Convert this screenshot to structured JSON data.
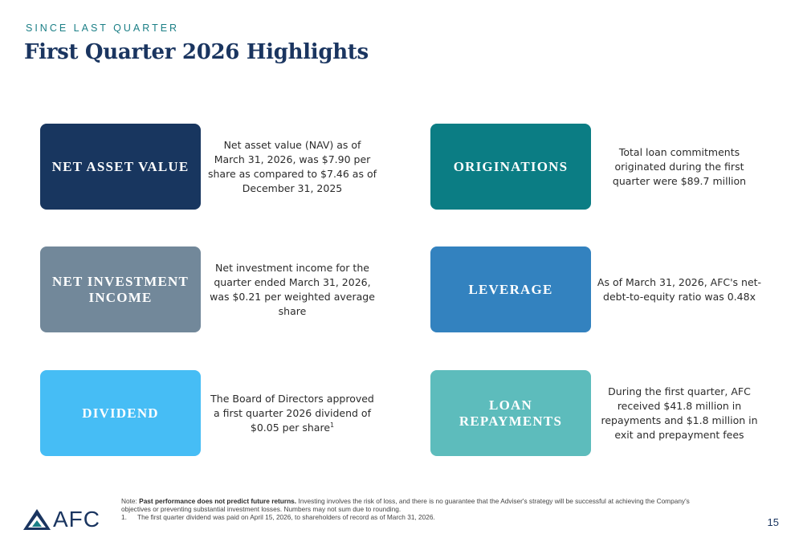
{
  "header": {
    "eyebrow": "SINCE LAST QUARTER",
    "title": "First Quarter 2026 Highlights"
  },
  "highlights": [
    {
      "label": "NET ASSET VALUE",
      "text": "Net asset value (NAV) as of March 31, 2026, was $7.90 per share as compared to $7.46 as of December 31, 2025",
      "color": "#18365f"
    },
    {
      "label": "ORIGINATIONS",
      "text": "Total loan commitments originated during the first quarter were $89.7 million",
      "color": "#0b7d84"
    },
    {
      "label": "NET INVESTMENT INCOME",
      "text": "Net investment income for the quarter ended March 31, 2026, was $0.21 per weighted average share",
      "color": "#72889a"
    },
    {
      "label": "LEVERAGE",
      "text": "As of March 31, 2026, AFC's net-debt-to-equity ratio was 0.48x",
      "color": "#3382bf"
    },
    {
      "label": "DIVIDEND",
      "text": "The Board of Directors approved a first quarter 2026 dividend of $0.05 per share",
      "footnote_ref": "1",
      "color": "#46bdf5"
    },
    {
      "label": "LOAN REPAYMENTS",
      "text": "During the first quarter, AFC received $41.8 million in repayments and $1.8 million in exit and prepayment fees",
      "color": "#5dbcbc"
    }
  ],
  "footer": {
    "note_label": "Note:",
    "note_bold": "Past performance does not predict future returns.",
    "note_text": "Investing involves the risk of loss, and there is no guarantee that the Adviser's strategy will be successful at achieving the Company's objectives or preventing substantial investment losses. Numbers may not sum due to rounding.",
    "footnote_number": "1.",
    "footnote_text": "The first quarter dividend was paid on April 15, 2026, to shareholders of record as of March 31, 2026.",
    "logo_text": "AFC",
    "page_number": "15"
  }
}
